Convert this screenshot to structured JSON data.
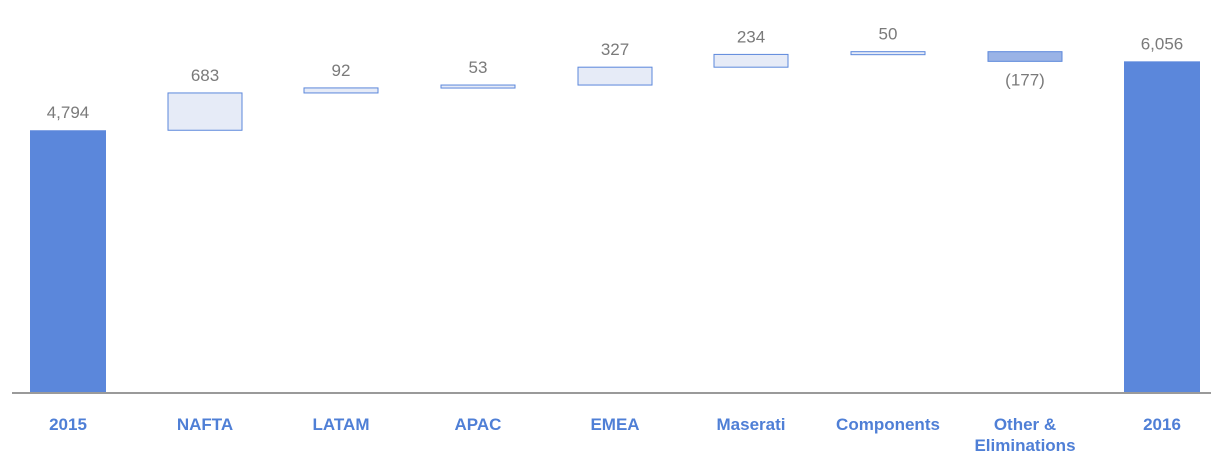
{
  "chart_data": {
    "type": "bar",
    "subtype": "waterfall",
    "title": "",
    "xlabel": "",
    "ylabel": "",
    "ylim": [
      0,
      7000
    ],
    "grid": false,
    "legend": "none",
    "categories": [
      "2015",
      "NAFTA",
      "LATAM",
      "APAC",
      "EMEA",
      "Maserati",
      "Components",
      "Other & Eliminations",
      "2016"
    ],
    "category_lines": [
      [
        "2015"
      ],
      [
        "NAFTA"
      ],
      [
        "LATAM"
      ],
      [
        "APAC"
      ],
      [
        "EMEA"
      ],
      [
        "Maserati"
      ],
      [
        "Components"
      ],
      [
        "Other &",
        "Eliminations"
      ],
      [
        "2016"
      ]
    ],
    "values": [
      4794,
      683,
      92,
      53,
      327,
      234,
      50,
      -177,
      6056
    ],
    "kinds": [
      "total",
      "delta",
      "delta",
      "delta",
      "delta",
      "delta",
      "delta",
      "delta",
      "total"
    ],
    "value_labels": [
      "4,794",
      "683",
      "92",
      "53",
      "327",
      "234",
      "50",
      "(177)",
      "6,056"
    ],
    "colors": {
      "total": "#5b87db",
      "increase_fill": "#e6ebf7",
      "increase_stroke": "#5b87db",
      "decrease_fill": "#9ab3e6",
      "decrease_stroke": "#5b87db",
      "axis": "#9a9a9a",
      "category_text": "#4f7fd6",
      "value_text": "#7a7a7a"
    }
  }
}
